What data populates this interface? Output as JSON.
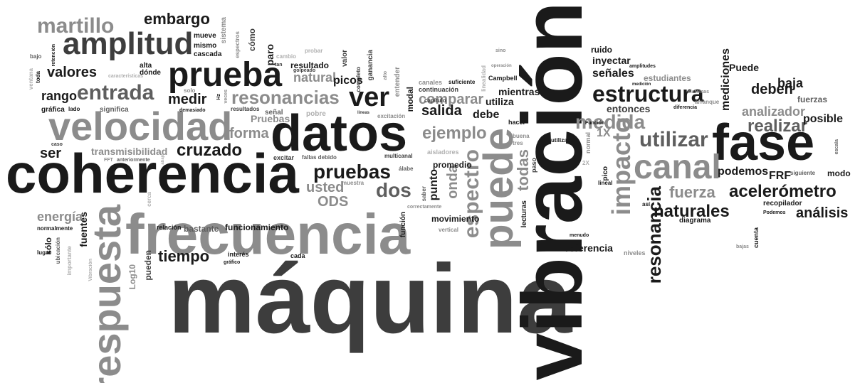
{
  "cloud": {
    "words": [
      "máquina",
      "vibración",
      "coherencia",
      "datos",
      "fase",
      "frecuencia",
      "velocidad",
      "respuesta",
      "prueba",
      "amplitud",
      "puede",
      "canal",
      "estructura",
      "impacto",
      "entrada",
      "valores",
      "martillo",
      "embargo",
      "resonancias",
      "ver",
      "pruebas",
      "espectro",
      "medida",
      "utilizar",
      "naturales",
      "acelerómetro",
      "resonancia",
      "realizar",
      "cruzado",
      "fuerza",
      "dos",
      "tiempo",
      "ejemplo",
      "salida",
      "deben",
      "baja",
      "posible",
      "análisis",
      "analizador",
      "entonces",
      "podemos",
      "FRF",
      "rango",
      "medir",
      "todas",
      "onda",
      "usted",
      "ODS",
      "energía",
      "ser",
      "transmisibilidad",
      "forma",
      "Pruebas",
      "natural",
      "resultado",
      "picos",
      "comparar",
      "punto",
      "debe",
      "utiliza",
      "mientras",
      "señales",
      "mediciones",
      "Puede",
      "estudiantes",
      "ruido",
      "inyectar",
      "fuentes",
      "funcionamiento",
      "movimiento",
      "referencia",
      "diagrama",
      "recopilador",
      "modo",
      "1X",
      "promedio",
      "modal",
      "paro",
      "cómo",
      "valor",
      "sistema",
      "mueve",
      "mismo",
      "cascada",
      "alta",
      "dónde",
      "gráfica",
      "lado",
      "significa",
      "resultados",
      "señal",
      "pobre",
      "excitar",
      "fallas debido",
      "multicanal",
      "muestra",
      "álabe",
      "saber",
      "pico",
      "lineal",
      "normal",
      "paso",
      "hacer",
      "buena",
      "tres",
      "utilizada",
      "Campbell",
      "suficiente",
      "canales",
      "continuación",
      "capítulo",
      "entender",
      "ganancia",
      "completo",
      "golpeado",
      "probar",
      "cambio",
      "espectros",
      "Hz",
      "veces",
      "solo",
      "demasiado",
      "características",
      "ventana",
      "toda",
      "bajo",
      "retención",
      "caso",
      "FFT",
      "anteriormente",
      "cerca",
      "abajo",
      "relación",
      "bastante",
      "pueden",
      "Log10",
      "interés",
      "gráfico",
      "cada",
      "lugar",
      "ubicación",
      "importante",
      "Vibración",
      "normalmente",
      "sólo",
      "función",
      "vertical",
      "correctamente",
      "lecturas",
      "niveles",
      "así",
      "menudo",
      "cuenta",
      "bajas",
      "Podemos",
      "siguiente",
      "escala",
      "arranque",
      "diferencia",
      "medición",
      "amplitudes",
      "operación",
      "linealidad",
      "excitación",
      "líneas",
      "alto",
      "aisladores",
      "tan",
      "2X",
      "Función",
      "fuerzas",
      "sistemas",
      "sino"
    ]
  }
}
